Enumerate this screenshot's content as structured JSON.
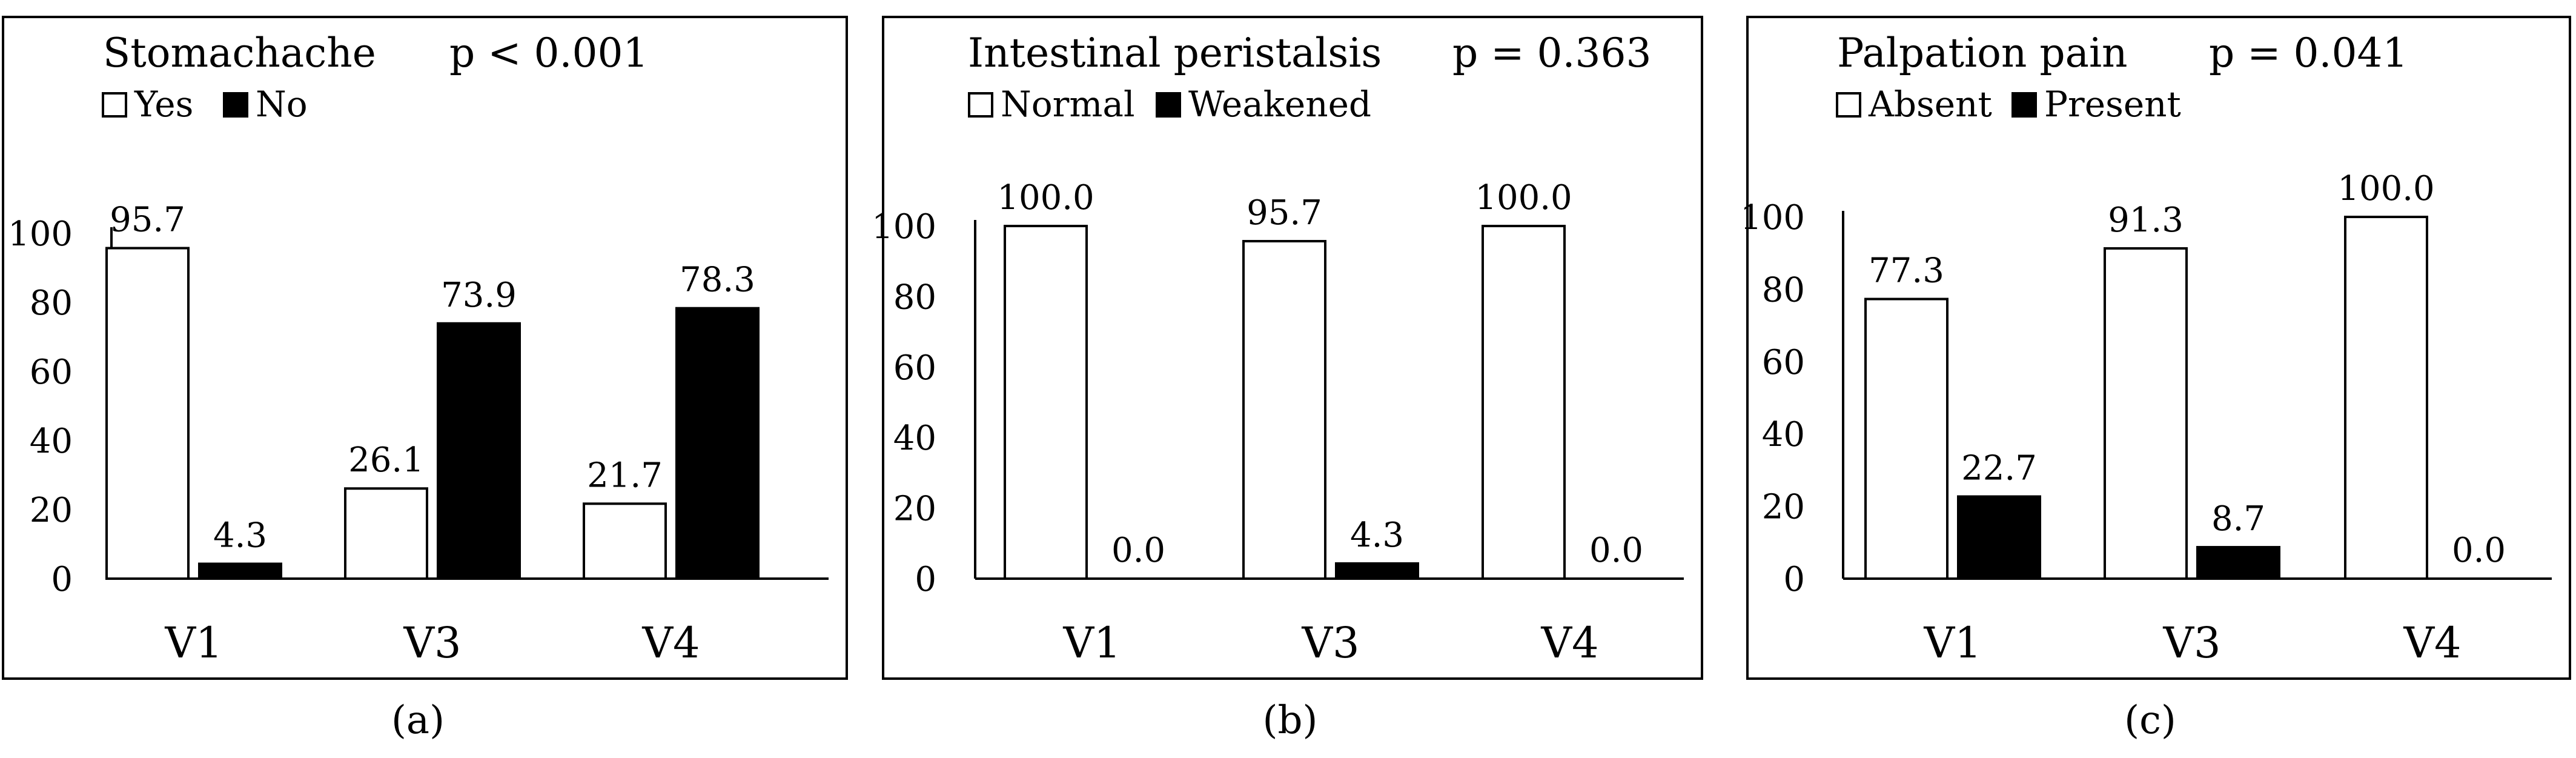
{
  "chart_data": [
    {
      "type": "bar",
      "title": "Stomachache",
      "pvalue": "p < 0.001",
      "caption": "(a)",
      "categories": [
        "V1",
        "V3",
        "V4"
      ],
      "series": [
        {
          "name": "Yes",
          "color": "#ffffff",
          "values": [
            95.7,
            26.1,
            21.7
          ],
          "labels": [
            "95.7",
            "26.1",
            "21.7"
          ]
        },
        {
          "name": "No",
          "color": "#000000",
          "values": [
            4.3,
            73.9,
            78.3
          ],
          "labels": [
            "4.3",
            "73.9",
            "78.3"
          ]
        }
      ],
      "yticks": [
        "0",
        "20",
        "40",
        "60",
        "80",
        "100"
      ],
      "ylim": [
        0,
        100
      ]
    },
    {
      "type": "bar",
      "title": "Intestinal peristalsis",
      "pvalue": "p = 0.363",
      "caption": "(b)",
      "categories": [
        "V1",
        "V3",
        "V4"
      ],
      "series": [
        {
          "name": "Normal",
          "color": "#ffffff",
          "values": [
            100.0,
            95.7,
            100.0
          ],
          "labels": [
            "100.0",
            "95.7",
            "100.0"
          ]
        },
        {
          "name": "Weakened",
          "color": "#000000",
          "values": [
            0.0,
            4.3,
            0.0
          ],
          "labels": [
            "0.0",
            "4.3",
            "0.0"
          ]
        }
      ],
      "yticks": [
        "0",
        "20",
        "40",
        "60",
        "80",
        "100"
      ],
      "ylim": [
        0,
        100
      ]
    },
    {
      "type": "bar",
      "title": "Palpation pain",
      "pvalue": "p = 0.041",
      "caption": "(c)",
      "categories": [
        "V1",
        "V3",
        "V4"
      ],
      "series": [
        {
          "name": "Absent",
          "color": "#ffffff",
          "values": [
            77.3,
            91.3,
            100.0
          ],
          "labels": [
            "77.3",
            "91.3",
            "100.0"
          ]
        },
        {
          "name": "Present",
          "color": "#000000",
          "values": [
            22.7,
            8.7,
            0.0
          ],
          "labels": [
            "22.7",
            "8.7",
            "0.0"
          ]
        }
      ],
      "yticks": [
        "0",
        "20",
        "40",
        "60",
        "80",
        "100"
      ],
      "ylim": [
        0,
        100
      ]
    }
  ]
}
